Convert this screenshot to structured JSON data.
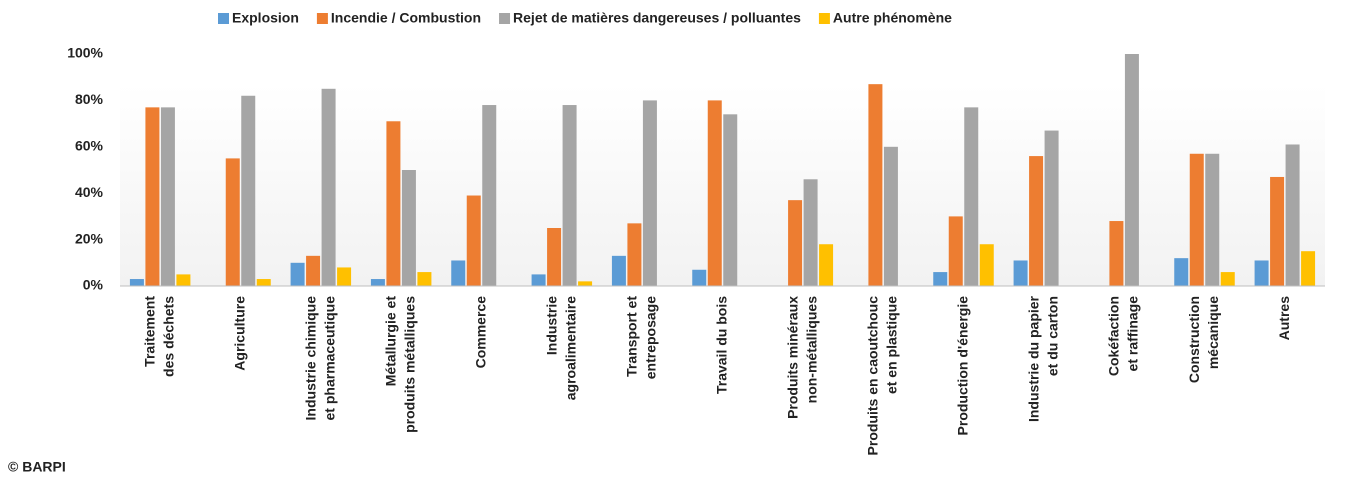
{
  "chart_data": {
    "type": "bar",
    "categories": [
      [
        "Traitement",
        "des déchets"
      ],
      [
        "Agriculture"
      ],
      [
        "Industrie chimique",
        "et pharmaceutique"
      ],
      [
        "Métallurgie et",
        "produits métalliques"
      ],
      [
        "Commerce"
      ],
      [
        "Industrie",
        "agroalimentaire"
      ],
      [
        "Transport et",
        "entreposage"
      ],
      [
        "Travail du bois"
      ],
      [
        "Produits minéraux",
        "non-métalliques"
      ],
      [
        "Produits en caoutchouc",
        "et en plastique"
      ],
      [
        "Production d'énergie"
      ],
      [
        "Industrie du papier",
        "et du carton"
      ],
      [
        "Cokéfaction",
        "et raffinage"
      ],
      [
        "Construction",
        "mécanique"
      ],
      [
        "Autres"
      ]
    ],
    "series": [
      {
        "name": "Explosion",
        "color": "#5b9bd5",
        "values": [
          3,
          0,
          10,
          3,
          11,
          5,
          13,
          7,
          0,
          0,
          6,
          11,
          0,
          12,
          11
        ]
      },
      {
        "name": "Incendie / Combustion",
        "color": "#ed7d31",
        "values": [
          77,
          55,
          13,
          71,
          39,
          25,
          27,
          80,
          37,
          87,
          30,
          56,
          28,
          57,
          47
        ]
      },
      {
        "name": "Rejet de matières dangereuses / polluantes",
        "color": "#a5a5a5",
        "values": [
          77,
          82,
          85,
          50,
          78,
          78,
          80,
          74,
          46,
          60,
          77,
          67,
          100,
          57,
          61
        ]
      },
      {
        "name": "Autre phénomène",
        "color": "#ffc000",
        "values": [
          5,
          3,
          8,
          6,
          0,
          2,
          0,
          0,
          18,
          0,
          18,
          0,
          0,
          6,
          15
        ]
      }
    ],
    "ylim": [
      0,
      100
    ],
    "yticks": [
      {
        "value": 0,
        "label": "0%"
      },
      {
        "value": 20,
        "label": "20%"
      },
      {
        "value": 40,
        "label": "40%"
      },
      {
        "value": 60,
        "label": "60%"
      },
      {
        "value": 80,
        "label": "80%"
      },
      {
        "value": 100,
        "label": "100%"
      }
    ],
    "grid": false,
    "legend": "top",
    "source": "© BARPI"
  }
}
